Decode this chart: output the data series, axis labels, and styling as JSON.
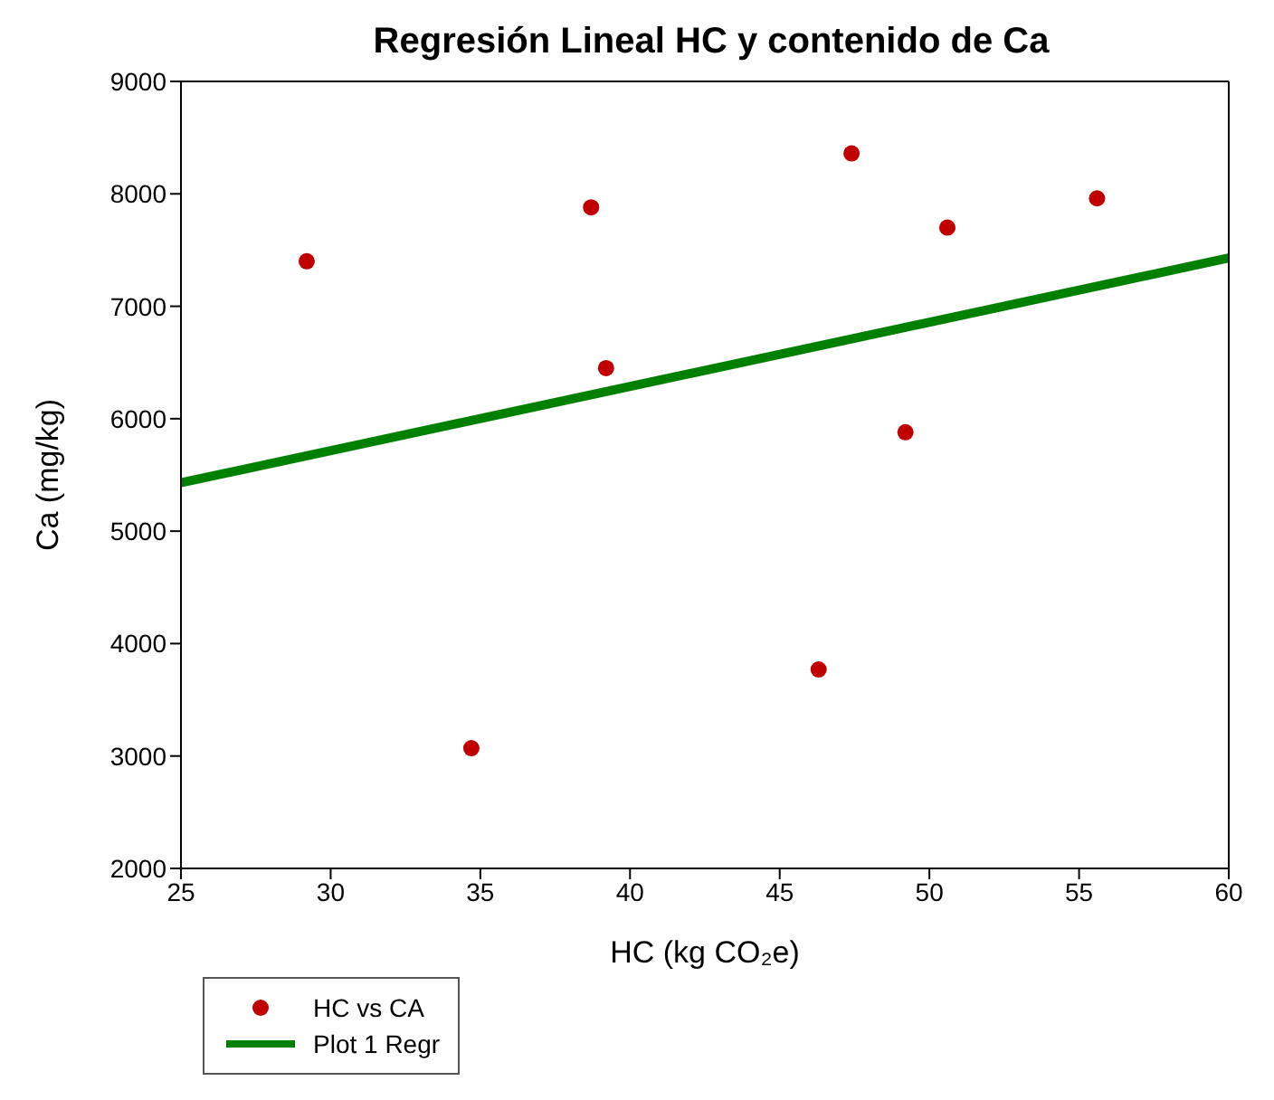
{
  "chart_data": {
    "type": "scatter",
    "title": "Regresión Lineal HC y contenido de Ca",
    "xlabel": "HC (kg CO₂e)",
    "ylabel": "Ca (mg/kg)",
    "xlim": [
      25,
      60
    ],
    "xticks": [
      25,
      30,
      35,
      40,
      45,
      50,
      55,
      60
    ],
    "ylim": [
      2000,
      9000
    ],
    "yticks": [
      2000,
      3000,
      4000,
      5000,
      6000,
      7000,
      8000,
      9000
    ],
    "legend": "bottom left",
    "series": [
      {
        "name": "HC vs CA",
        "color": "#c00000",
        "marker": "circle",
        "x": [
          29.2,
          34.7,
          38.7,
          39.2,
          46.3,
          47.4,
          49.2,
          50.6,
          55.6
        ],
        "values": [
          7400,
          3070,
          7880,
          6450,
          3770,
          8360,
          5880,
          7700,
          7960
        ]
      },
      {
        "name": "Plot 1 Regr",
        "type": "line",
        "color": "#008000",
        "marker": "none",
        "x": [
          25,
          60
        ],
        "values": [
          5430,
          7430
        ]
      }
    ]
  }
}
